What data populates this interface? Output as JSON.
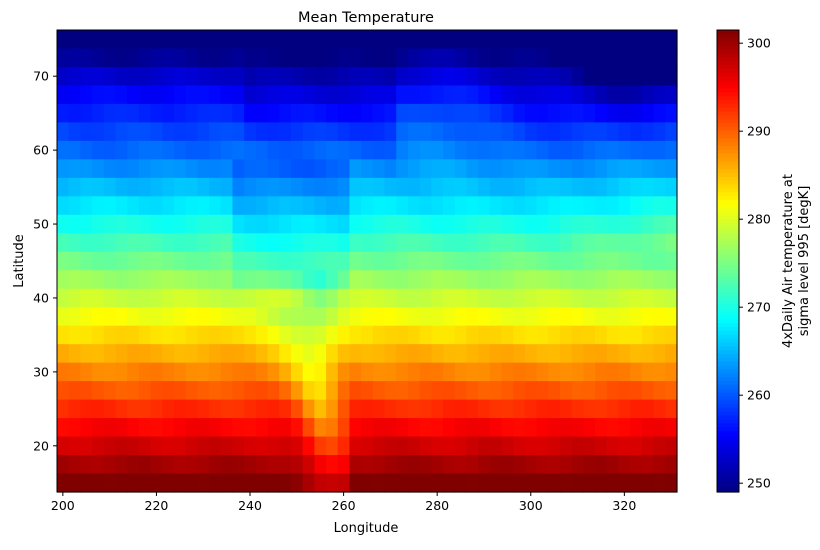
{
  "chart_data": {
    "type": "heatmap",
    "title": "Mean Temperature",
    "xlabel": "Longitude",
    "ylabel": "Latitude",
    "colorbar_label_line1": "4xDaily Air temperature at",
    "colorbar_label_line2": "sigma level 995 [degK]",
    "xlim": [
      198.75,
      331.25
    ],
    "ylim": [
      13.75,
      76.25
    ],
    "xticks": [
      200,
      220,
      240,
      260,
      280,
      300,
      320
    ],
    "yticks": [
      20,
      30,
      40,
      50,
      60,
      70
    ],
    "cbar_ticks": [
      250,
      260,
      270,
      280,
      290,
      300
    ],
    "vmin": 249,
    "vmax": 301.5,
    "colormap": "jet",
    "grid": false,
    "x_start": 200,
    "x_step": 2.5,
    "y_start": 75,
    "y_step": -2.5,
    "row_latitudes": [
      75,
      72.5,
      70,
      67.5,
      65,
      62.5,
      60,
      57.5,
      55,
      52.5,
      50,
      47.5,
      45,
      42.5,
      40,
      37.5,
      35,
      32.5,
      30,
      27.5,
      25,
      22.5,
      20,
      17.5,
      15
    ],
    "values": []
  }
}
